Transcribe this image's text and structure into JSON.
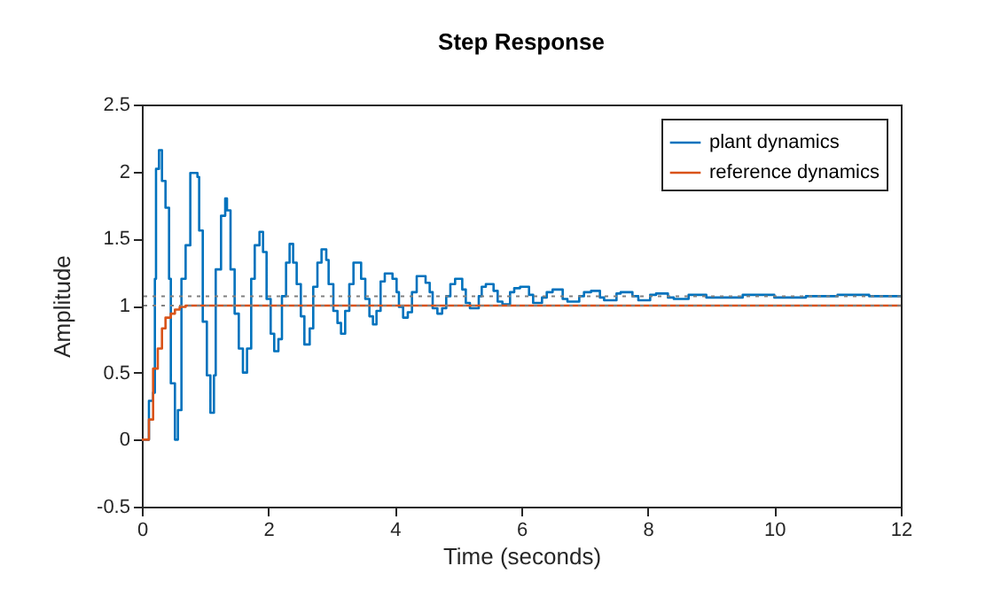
{
  "chart_data": {
    "type": "step",
    "title": "Step Response",
    "xlabel": "Time (seconds)",
    "ylabel": "Amplitude",
    "xlim": [
      0,
      12
    ],
    "xticks": [
      0,
      2,
      4,
      6,
      8,
      10,
      12
    ],
    "ylim": [
      -0.5,
      2.5
    ],
    "yticks": [
      -0.5,
      0,
      0.5,
      1,
      1.5,
      2,
      2.5
    ],
    "grid": false,
    "legend": "top right",
    "marker": "none",
    "series": [
      {
        "name": "plant dynamics",
        "color": "#0072bd",
        "x": [
          0,
          0.112,
          0.178,
          0.206,
          0.224,
          0.271,
          0.318,
          0.374,
          0.43,
          0.458,
          0.523,
          0.57,
          0.626,
          0.692,
          0.766,
          0.879,
          0.906,
          0.963,
          1.028,
          1.084,
          1.14,
          1.168,
          1.252,
          1.318,
          1.346,
          1.402,
          1.467,
          1.533,
          1.598,
          1.663,
          1.729,
          1.785,
          1.86,
          1.916,
          1.972,
          2.037,
          2.093,
          2.159,
          2.215,
          2.28,
          2.336,
          2.392,
          2.448,
          2.514,
          2.57,
          2.654,
          2.71,
          2.776,
          2.841,
          2.916,
          2.953,
          3.028,
          3.093,
          3.149,
          3.215,
          3.28,
          3.346,
          3.467,
          3.533,
          3.598,
          3.654,
          3.71,
          3.775,
          3.841,
          3.963,
          4.028,
          4.065,
          4.131,
          4.205,
          4.271,
          4.346,
          4.486,
          4.551,
          4.598,
          4.673,
          4.748,
          4.813,
          4.878,
          4.953,
          5.066,
          5.122,
          5.187,
          5.327,
          5.374,
          5.439,
          5.561,
          5.626,
          5.701,
          5.822,
          5.888,
          5.981,
          6.122,
          6.187,
          6.327,
          6.402,
          6.495,
          6.654,
          6.729,
          6.916,
          6.991,
          7.103,
          7.243,
          7.309,
          7.505,
          7.57,
          7.757,
          7.85,
          8.037,
          8.13,
          8.318,
          8.411,
          8.645,
          8.925,
          9.5,
          10,
          10.5,
          11,
          11.5,
          12
        ],
        "values": [
          0,
          0.29,
          0.35,
          1.2,
          2.02,
          2.16,
          1.93,
          1.73,
          1.2,
          0.42,
          0,
          0.22,
          1.2,
          1.45,
          1.99,
          1.96,
          1.56,
          0.88,
          0.48,
          0.2,
          0.48,
          1.27,
          1.67,
          1.8,
          1.71,
          1.27,
          0.94,
          0.68,
          0.5,
          0.68,
          1.2,
          1.45,
          1.55,
          1.4,
          1.05,
          0.79,
          0.66,
          0.75,
          1.07,
          1.32,
          1.46,
          1.32,
          1.16,
          0.92,
          0.71,
          0.83,
          1.14,
          1.32,
          1.42,
          1.34,
          1.16,
          0.96,
          0.87,
          0.79,
          0.96,
          1.16,
          1.32,
          1.2,
          1.05,
          0.92,
          0.86,
          0.96,
          1.18,
          1.24,
          1.2,
          1.1,
          0.99,
          0.91,
          0.95,
          1.1,
          1.22,
          1.17,
          1.1,
          0.98,
          0.94,
          0.98,
          1.07,
          1.16,
          1.2,
          1.12,
          1.02,
          0.98,
          1.07,
          1.14,
          1.16,
          1.11,
          1.03,
          1.01,
          1.1,
          1.13,
          1.14,
          1.08,
          1.02,
          1.06,
          1.1,
          1.12,
          1.05,
          1.03,
          1.07,
          1.1,
          1.11,
          1.06,
          1.04,
          1.09,
          1.1,
          1.07,
          1.04,
          1.08,
          1.09,
          1.06,
          1.05,
          1.08,
          1.06,
          1.08,
          1.06,
          1.07,
          1.08,
          1.07,
          1.07
        ]
      },
      {
        "name": "reference dynamics",
        "color": "#d95319",
        "x": [
          0,
          0.112,
          0.178,
          0.252,
          0.318,
          0.374,
          0.458,
          0.523,
          0.598,
          0.692,
          12
        ],
        "values": [
          0,
          0.15,
          0.53,
          0.68,
          0.83,
          0.91,
          0.94,
          0.97,
          0.99,
          1,
          1
        ]
      }
    ],
    "ref_lines": [
      {
        "axis": "y",
        "value": 1.07,
        "color": "#808080",
        "line_style": "dotted"
      },
      {
        "axis": "y",
        "value": 1,
        "color": "#808080",
        "line_style": "dotted"
      }
    ]
  }
}
